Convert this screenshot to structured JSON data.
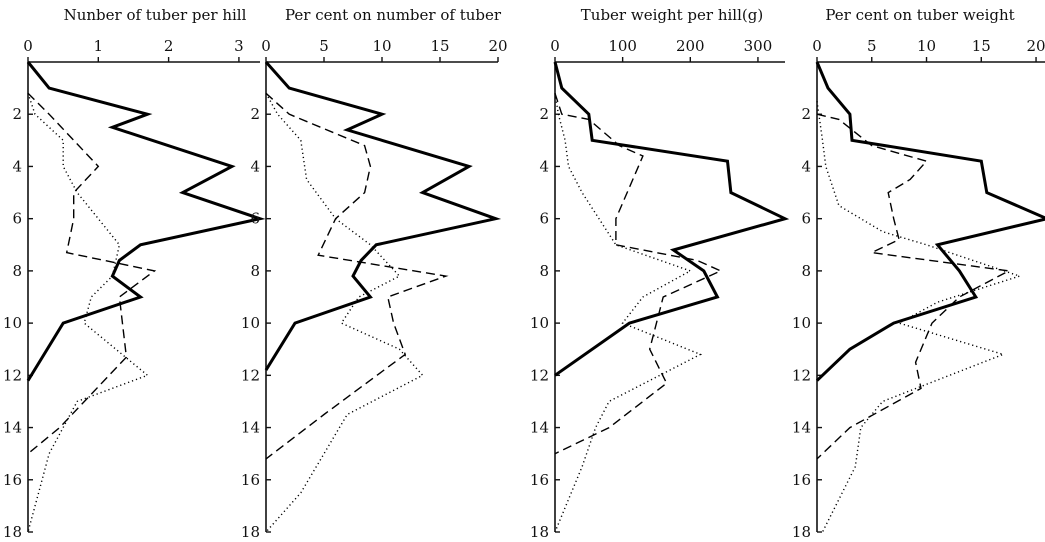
{
  "chart_data": [
    {
      "type": "line",
      "orientation": "vertical",
      "title": "Nunber of tuber per hill",
      "xlim": [
        0,
        3.3
      ],
      "xticks": [
        0,
        1,
        2,
        3
      ],
      "ylim": [
        0,
        18
      ],
      "yticks": [
        2,
        4,
        6,
        8,
        10,
        12,
        14,
        16,
        18
      ],
      "grid": false,
      "series": [
        {
          "style": "solid",
          "points": [
            [
              0,
              0
            ],
            [
              0.3,
              1
            ],
            [
              1.7,
              2
            ],
            [
              1.2,
              2.5
            ],
            [
              2.9,
              4
            ],
            [
              2.2,
              5
            ],
            [
              3.3,
              6
            ],
            [
              1.6,
              7
            ],
            [
              1.3,
              7.6
            ],
            [
              1.2,
              8.2
            ],
            [
              1.6,
              9
            ],
            [
              0.5,
              10
            ],
            [
              0,
              12.2
            ]
          ]
        },
        {
          "style": "dashed",
          "points": [
            [
              0,
              1.2
            ],
            [
              0.3,
              2
            ],
            [
              1.0,
              4
            ],
            [
              0.65,
              5
            ],
            [
              0.65,
              6
            ],
            [
              0.55,
              7.3
            ],
            [
              1.8,
              8
            ],
            [
              1.3,
              9
            ],
            [
              1.4,
              11.3
            ],
            [
              0.45,
              14
            ],
            [
              0,
              15
            ]
          ]
        },
        {
          "style": "dotted",
          "points": [
            [
              0,
              1.2
            ],
            [
              0.1,
              2
            ],
            [
              0.5,
              3
            ],
            [
              0.5,
              4
            ],
            [
              0.7,
              5
            ],
            [
              1.0,
              6
            ],
            [
              1.3,
              7
            ],
            [
              1.2,
              8.2
            ],
            [
              0.9,
              9
            ],
            [
              0.8,
              10
            ],
            [
              1.7,
              12
            ],
            [
              0.7,
              13
            ],
            [
              0.3,
              15
            ],
            [
              0.2,
              16
            ],
            [
              0,
              18
            ]
          ]
        }
      ]
    },
    {
      "type": "line",
      "orientation": "vertical",
      "title": "Per cent on number of tuber",
      "xlim": [
        0,
        20
      ],
      "xticks": [
        0,
        5,
        10,
        15,
        20
      ],
      "ylim": [
        0,
        18
      ],
      "yticks": [
        2,
        4,
        6,
        8,
        10,
        12,
        14,
        16,
        18
      ],
      "grid": false,
      "series": [
        {
          "style": "solid",
          "points": [
            [
              0,
              0
            ],
            [
              2,
              1
            ],
            [
              10,
              2
            ],
            [
              7,
              2.6
            ],
            [
              17.5,
              4
            ],
            [
              13.5,
              5
            ],
            [
              19.8,
              6
            ],
            [
              9.5,
              7
            ],
            [
              8.2,
              7.6
            ],
            [
              7.5,
              8.2
            ],
            [
              9,
              9
            ],
            [
              2.5,
              10
            ],
            [
              0,
              11.8
            ]
          ]
        },
        {
          "style": "dashed",
          "points": [
            [
              0,
              1.2
            ],
            [
              2,
              2
            ],
            [
              8.5,
              3.2
            ],
            [
              9,
              4
            ],
            [
              8.5,
              5
            ],
            [
              6,
              6
            ],
            [
              4.5,
              7.4
            ],
            [
              15.5,
              8.2
            ],
            [
              10.5,
              9
            ],
            [
              11,
              10
            ],
            [
              12,
              11.2
            ],
            [
              5,
              13.5
            ],
            [
              0,
              15.2
            ]
          ]
        },
        {
          "style": "dotted",
          "points": [
            [
              0,
              1.2
            ],
            [
              1,
              2
            ],
            [
              3,
              3
            ],
            [
              3.5,
              4.5
            ],
            [
              6,
              6
            ],
            [
              9,
              7
            ],
            [
              11.5,
              8.2
            ],
            [
              8,
              9
            ],
            [
              6.5,
              10
            ],
            [
              11.5,
              11
            ],
            [
              13.5,
              12
            ],
            [
              7,
              13.5
            ],
            [
              5,
              15
            ],
            [
              3,
              16.5
            ],
            [
              0,
              18
            ]
          ]
        }
      ]
    },
    {
      "type": "line",
      "orientation": "vertical",
      "title": "Tuber weight per hill(g)",
      "xlim": [
        0,
        340
      ],
      "xticks": [
        0,
        100,
        200,
        300
      ],
      "ylim": [
        0,
        18
      ],
      "yticks": [
        2,
        4,
        6,
        8,
        10,
        12,
        14,
        16,
        18
      ],
      "grid": false,
      "series": [
        {
          "style": "solid",
          "points": [
            [
              0,
              0
            ],
            [
              10,
              1
            ],
            [
              50,
              2
            ],
            [
              55,
              3
            ],
            [
              255,
              3.8
            ],
            [
              260,
              5
            ],
            [
              340,
              6
            ],
            [
              175,
              7.2
            ],
            [
              220,
              8
            ],
            [
              240,
              9
            ],
            [
              110,
              10
            ],
            [
              0,
              12
            ]
          ]
        },
        {
          "style": "dashed",
          "points": [
            [
              0,
              1.2
            ],
            [
              10,
              2
            ],
            [
              50,
              2.2
            ],
            [
              95,
              3.2
            ],
            [
              130,
              3.6
            ],
            [
              115,
              4.5
            ],
            [
              90,
              6
            ],
            [
              90,
              7
            ],
            [
              210,
              7.6
            ],
            [
              245,
              8
            ],
            [
              160,
              9
            ],
            [
              140,
              11
            ],
            [
              165,
              12.3
            ],
            [
              80,
              14
            ],
            [
              0,
              15
            ]
          ]
        },
        {
          "style": "dotted",
          "points": [
            [
              0,
              1.2
            ],
            [
              5,
              2
            ],
            [
              15,
              3
            ],
            [
              20,
              4
            ],
            [
              40,
              5
            ],
            [
              65,
              6
            ],
            [
              90,
              7
            ],
            [
              200,
              8
            ],
            [
              130,
              9
            ],
            [
              100,
              10
            ],
            [
              215,
              11.2
            ],
            [
              80,
              13
            ],
            [
              60,
              14
            ],
            [
              40,
              15.5
            ],
            [
              0,
              18
            ]
          ]
        }
      ]
    },
    {
      "type": "line",
      "orientation": "vertical",
      "title": "Per cent on tuber weight",
      "xlim": [
        0,
        21
      ],
      "xticks": [
        0,
        5,
        10,
        15,
        20
      ],
      "ylim": [
        0,
        18
      ],
      "yticks": [
        2,
        4,
        6,
        8,
        10,
        12,
        14,
        16,
        18
      ],
      "grid": false,
      "series": [
        {
          "style": "solid",
          "points": [
            [
              0,
              0
            ],
            [
              1,
              1
            ],
            [
              3,
              2
            ],
            [
              3.2,
              3
            ],
            [
              15,
              3.8
            ],
            [
              15.5,
              5
            ],
            [
              21,
              6
            ],
            [
              11,
              7
            ],
            [
              13,
              8
            ],
            [
              14.5,
              9
            ],
            [
              7,
              10
            ],
            [
              3,
              11
            ],
            [
              0,
              12.2
            ]
          ]
        },
        {
          "style": "dashed",
          "points": [
            [
              0,
              2
            ],
            [
              2,
              2.2
            ],
            [
              5,
              3.2
            ],
            [
              10,
              3.8
            ],
            [
              8.5,
              4.5
            ],
            [
              6.5,
              5
            ],
            [
              7,
              6
            ],
            [
              7.5,
              6.8
            ],
            [
              5,
              7.3
            ],
            [
              17.5,
              8
            ],
            [
              13,
              9
            ],
            [
              10.5,
              10
            ],
            [
              9,
              11.5
            ],
            [
              9.5,
              12.5
            ],
            [
              3,
              14
            ],
            [
              0,
              15.2
            ]
          ]
        },
        {
          "style": "dotted",
          "points": [
            [
              0,
              1.5
            ],
            [
              0.5,
              3
            ],
            [
              0.8,
              4
            ],
            [
              2,
              5.5
            ],
            [
              6,
              6.5
            ],
            [
              10,
              7
            ],
            [
              18.5,
              8.2
            ],
            [
              11,
              9.2
            ],
            [
              7.5,
              10
            ],
            [
              17,
              11.2
            ],
            [
              6,
              13
            ],
            [
              4,
              14
            ],
            [
              3.5,
              15.5
            ],
            [
              0.5,
              18
            ]
          ]
        }
      ]
    }
  ]
}
